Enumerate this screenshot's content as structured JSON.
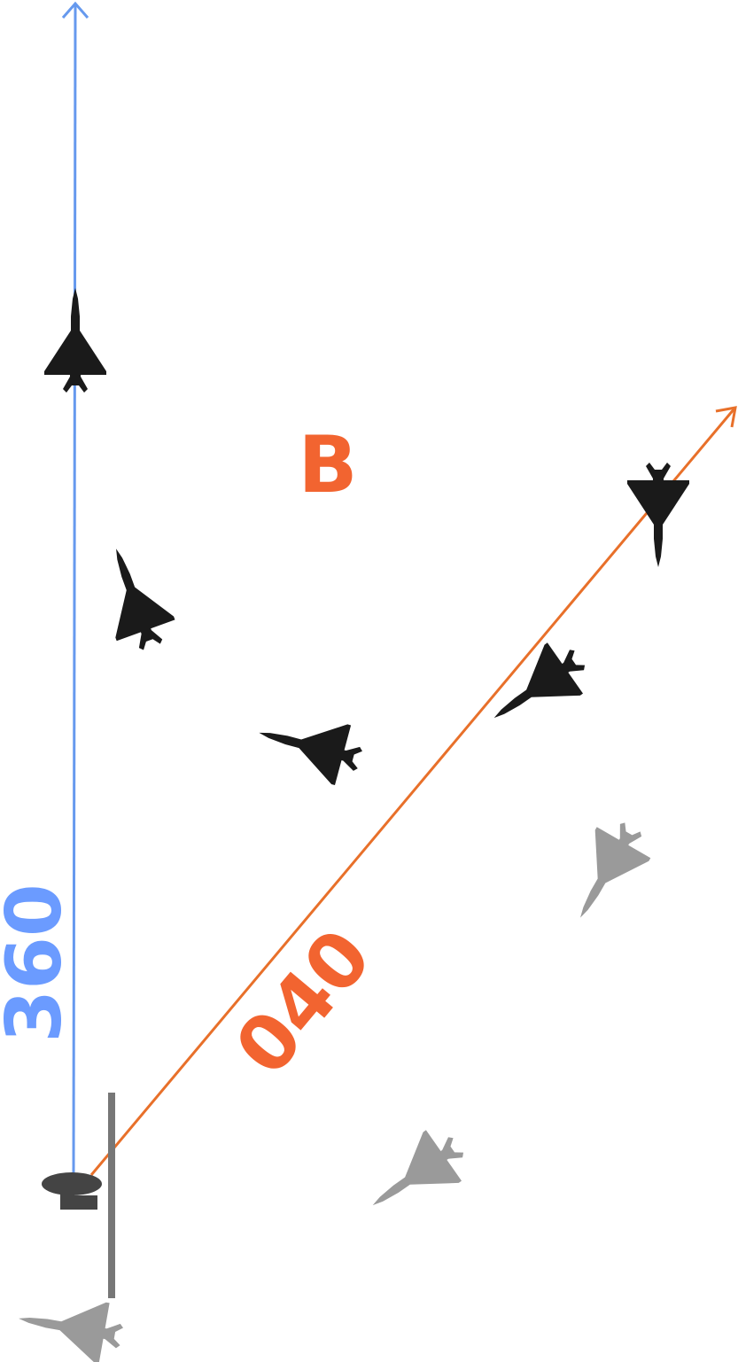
{
  "colors": {
    "north_line": "#6699ee",
    "north_text": "#6b9bff",
    "heading_line": "#e8702a",
    "heading_text": "#f26430",
    "aircraft_black": "#1a1a1a",
    "aircraft_grey": "#9a9a9a",
    "station": "#444444",
    "barrier": "#777777"
  },
  "labels": {
    "north_heading": "360",
    "course_heading": "040",
    "zone": "B"
  },
  "icons": {
    "aircraft": "delta-wing-jet-icon",
    "ground_station": "radar-station-icon",
    "arrowhead": "arrowhead-icon"
  }
}
